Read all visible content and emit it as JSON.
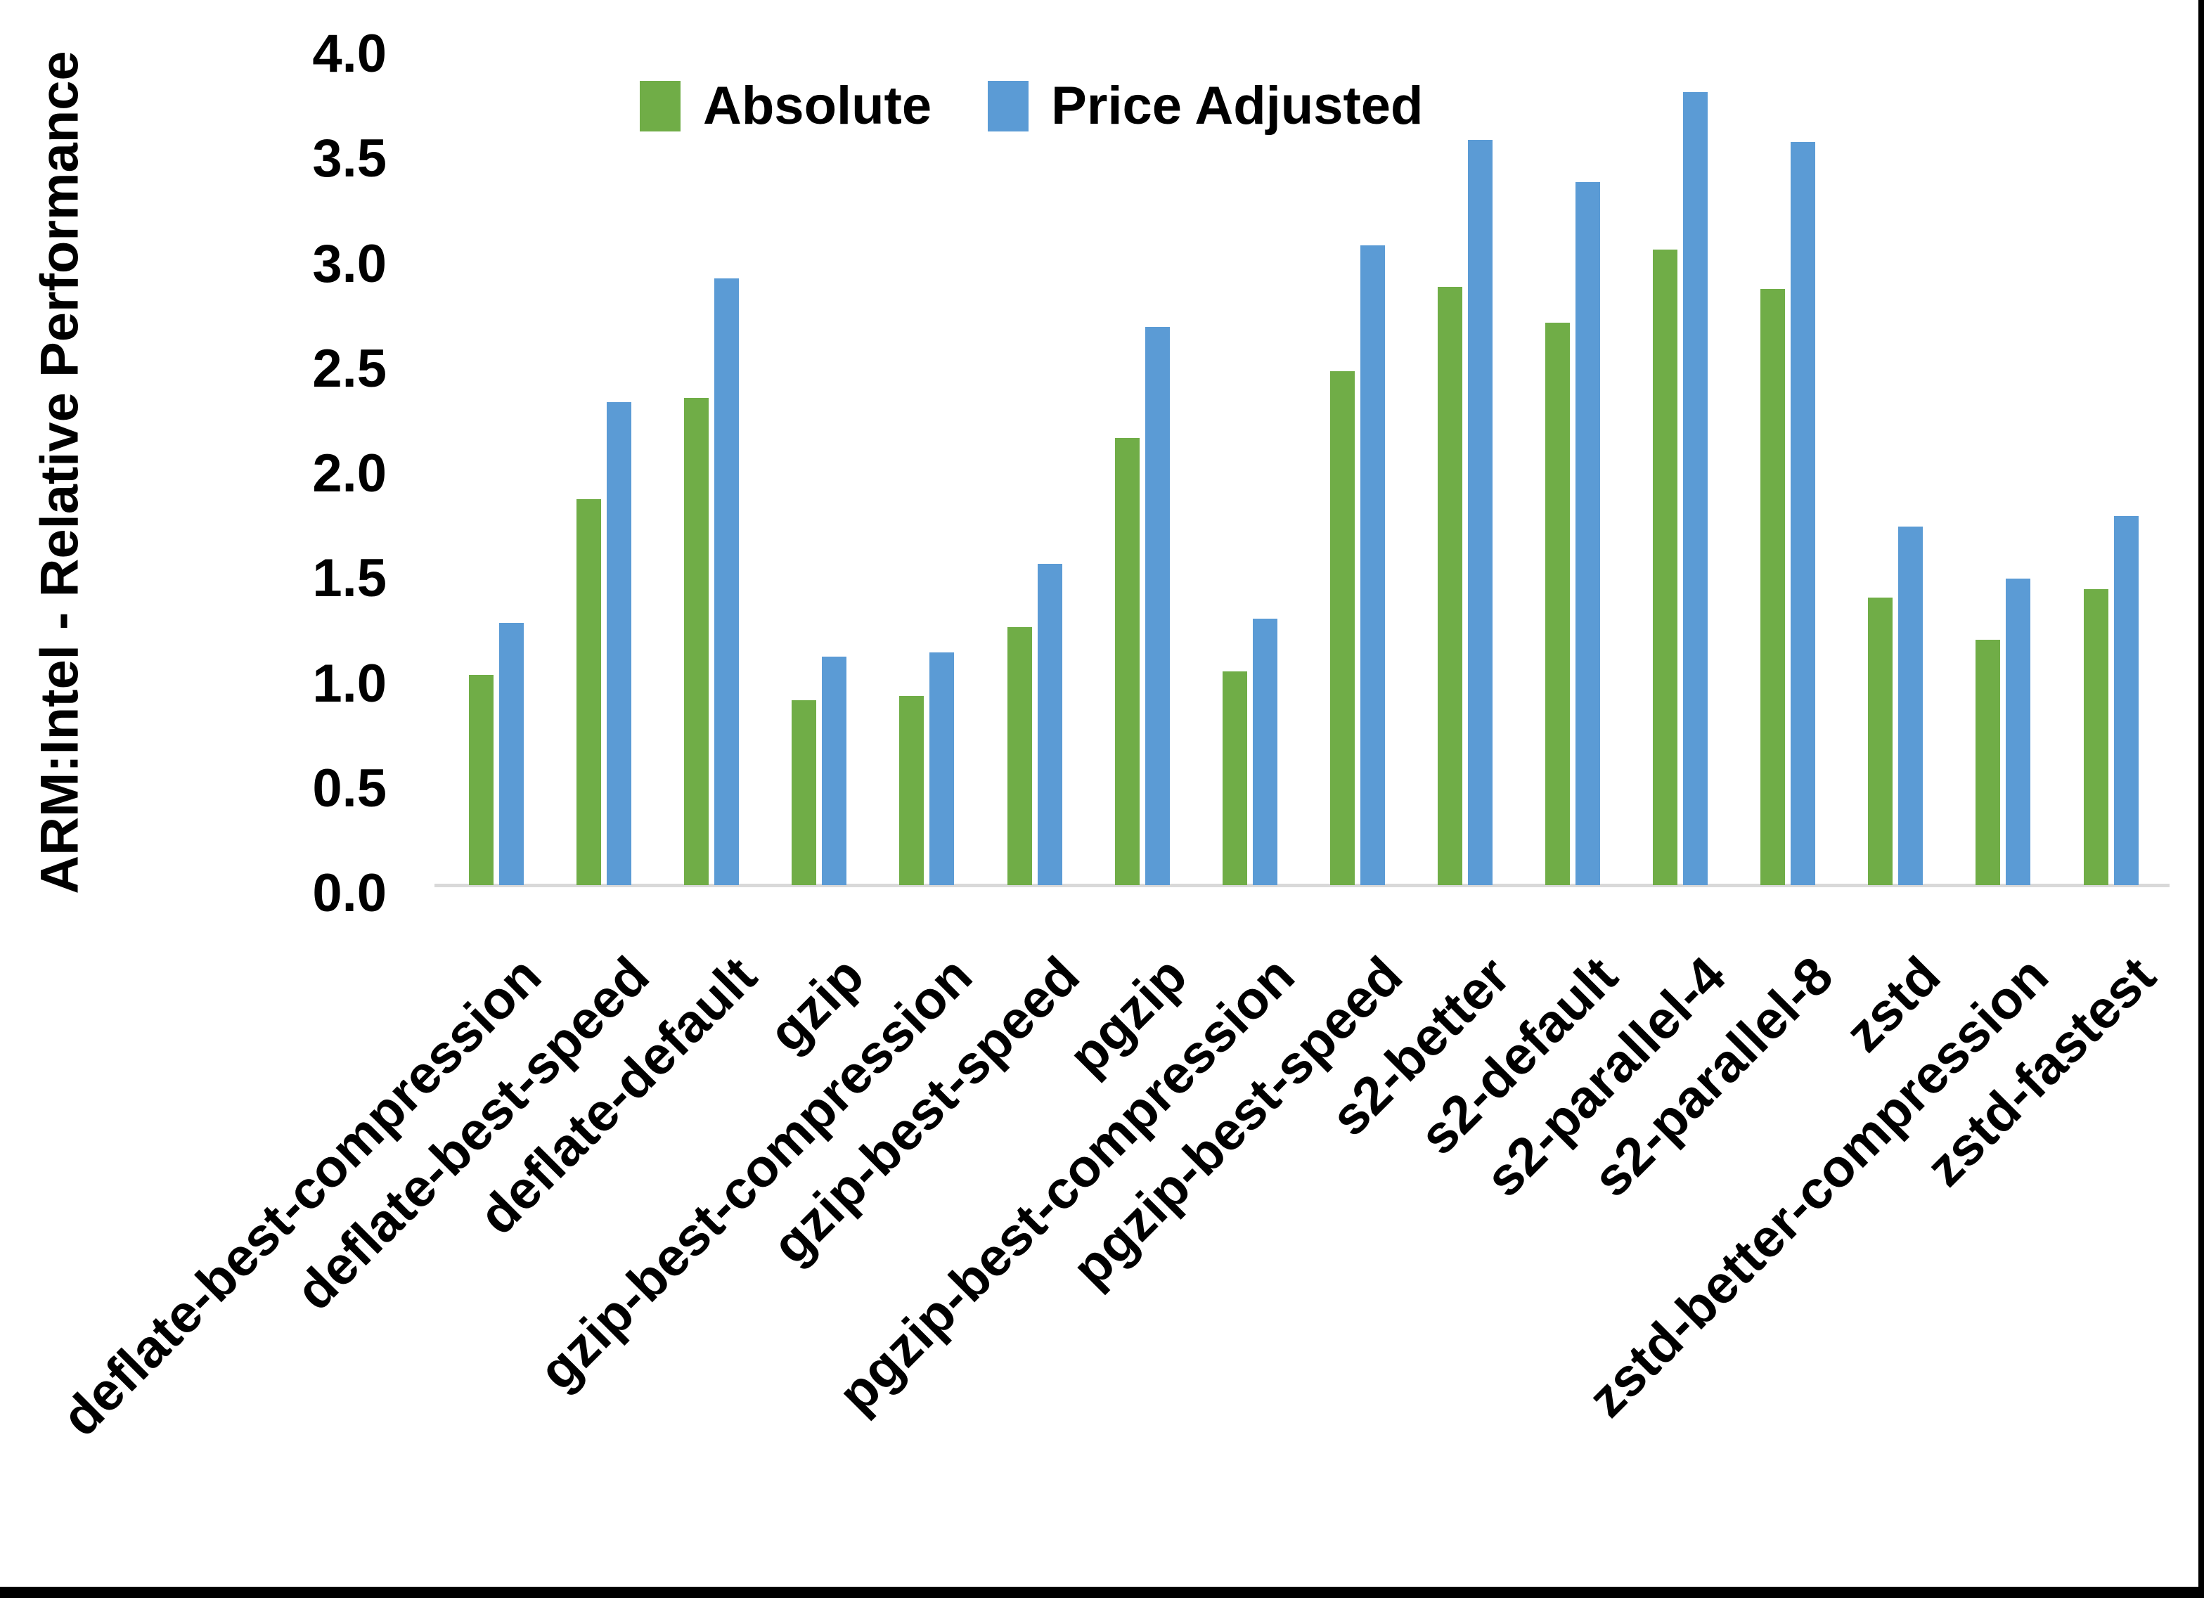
{
  "chart_data": {
    "type": "bar",
    "title": "",
    "ylabel": "ARM:Intel - Relative Performance",
    "xlabel": "",
    "ylim": [
      0.0,
      4.0
    ],
    "ytick_step": 0.5,
    "yticks": [
      "0.0",
      "0.5",
      "1.0",
      "1.5",
      "2.0",
      "2.5",
      "3.0",
      "3.5",
      "4.0"
    ],
    "grid": false,
    "legend_position": "top-center",
    "categories": [
      "deflate-best-compression",
      "deflate-best-speed",
      "deflate-default",
      "gzip",
      "gzip-best-compression",
      "gzip-best-speed",
      "pgzip",
      "pgzip-best-compression",
      "pgzip-best-speed",
      "s2-better",
      "s2-default",
      "s2-parallel-4",
      "s2-parallel-8",
      "zstd",
      "zstd-better-compression",
      "zstd-fastest"
    ],
    "series": [
      {
        "name": "Absolute",
        "color": "#70AD47",
        "values": [
          1.0,
          1.84,
          2.32,
          0.88,
          0.9,
          1.23,
          2.13,
          1.02,
          2.45,
          2.85,
          2.68,
          3.03,
          2.84,
          1.37,
          1.17,
          1.41
        ]
      },
      {
        "name": "Price Adjusted",
        "color": "#5B9BD5",
        "values": [
          1.25,
          2.3,
          2.89,
          1.09,
          1.11,
          1.53,
          2.66,
          1.27,
          3.05,
          3.55,
          3.35,
          3.78,
          3.54,
          1.71,
          1.46,
          1.76
        ]
      }
    ],
    "axis_line_color": "#D9D9D9",
    "text_color": "#000000",
    "background": "#FFFFFF"
  }
}
